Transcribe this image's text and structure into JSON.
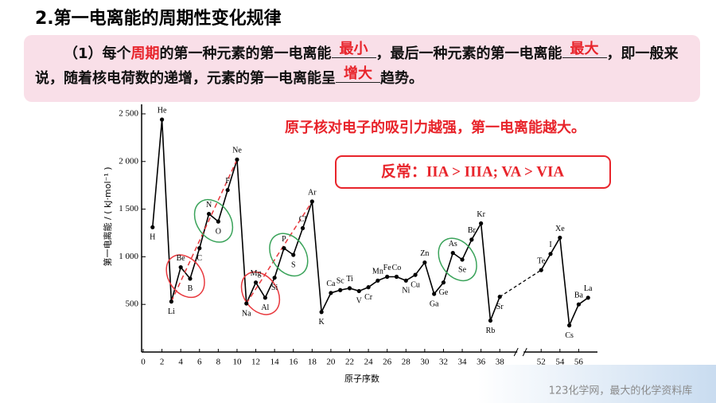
{
  "header": {
    "title": "2.第一电离能的周期性变化规律"
  },
  "question": {
    "segments": [
      "（1）每个",
      "周期",
      "的第一种元素的第一电离能",
      "最小",
      "，最后一种元素的第一电离能",
      "最大",
      "，即一般来说，随着核电荷数的递增，元素的第一电离能呈",
      "增大",
      "趋势。"
    ]
  },
  "annotations": [
    "原子核对电子的吸引力越强，第一电离能越大。",
    "反常：IIA > IIIA; VA > VIA"
  ],
  "watermark": "123化学网，最大的化学资料库",
  "chart_data": {
    "type": "line",
    "x_label": "原子序数",
    "y_label": "第一电离能 / ( kJ·mol⁻¹ )",
    "categories": [
      "H",
      "He",
      "Li",
      "Be",
      "B",
      "C",
      "N",
      "O",
      "F",
      "Ne",
      "Na",
      "Mg",
      "Al",
      "Si",
      "P",
      "S",
      "Cl",
      "Ar",
      "K",
      "Ca",
      "Sc",
      "Ti",
      "V",
      "Cr",
      "Mn",
      "Fe",
      "Co",
      "Ni",
      "Cu",
      "Zn",
      "Ga",
      "Ge",
      "As",
      "Se",
      "Br",
      "Kr",
      "Rb",
      "Sr",
      "Te",
      "I",
      "Xe",
      "Cs",
      "Ba",
      "La"
    ],
    "x": [
      1,
      2,
      3,
      4,
      5,
      6,
      7,
      8,
      9,
      10,
      11,
      12,
      13,
      14,
      15,
      16,
      17,
      18,
      19,
      20,
      21,
      22,
      23,
      24,
      25,
      26,
      27,
      28,
      29,
      30,
      31,
      32,
      33,
      34,
      35,
      36,
      37,
      38,
      52,
      53,
      54,
      55,
      56,
      57
    ],
    "series": [
      {
        "color": "#000000",
        "values": [
          1310,
          2440,
          530,
          890,
          770,
          1090,
          1450,
          1370,
          1700,
          2020,
          510,
          730,
          570,
          780,
          1090,
          1020,
          1300,
          1580,
          420,
          620,
          650,
          670,
          640,
          680,
          750,
          790,
          790,
          750,
          810,
          940,
          610,
          730,
          1040,
          970,
          1180,
          1350,
          330,
          580,
          860,
          1030,
          1200,
          280,
          500,
          570
        ]
      }
    ],
    "xlim": [
      0,
      58
    ],
    "xticks": [
      0,
      2,
      4,
      6,
      8,
      10,
      12,
      14,
      16,
      18,
      20,
      22,
      24,
      26,
      28,
      30,
      32,
      34,
      36,
      38,
      52,
      54,
      56
    ],
    "ylim": [
      0,
      2600
    ],
    "yticks": [
      500,
      {
        "value": 1000,
        "label": "1 000"
      },
      {
        "value": 1500,
        "label": "1 500"
      },
      {
        "value": 2000,
        "label": "2 000"
      },
      {
        "value": 2500,
        "label": "2 500"
      }
    ]
  }
}
